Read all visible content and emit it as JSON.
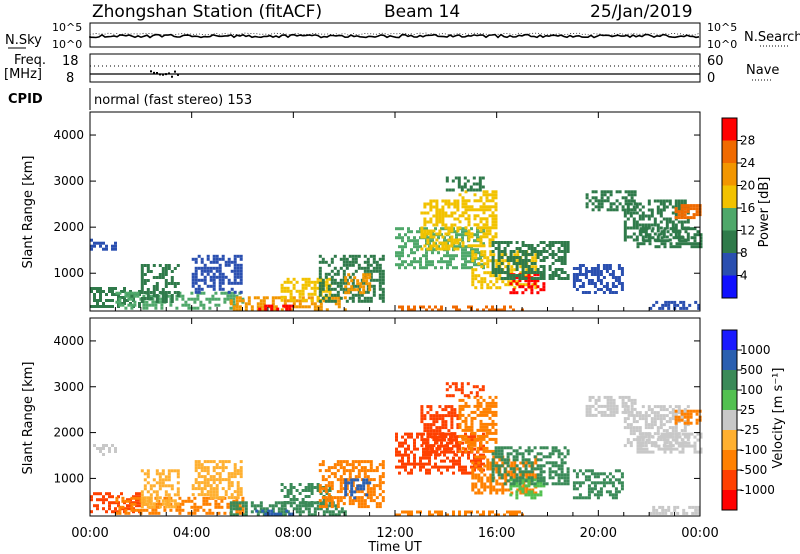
{
  "header": {
    "station": "Zhongshan Station (fitACF)",
    "beam": "Beam 14",
    "date": "25/Jan/2019"
  },
  "aux_panels": {
    "nsky_label": "N.Sky",
    "nsearch_label": "N.Search",
    "nsky_tick_top": "10^5",
    "nsky_tick_bottom": "10^0",
    "freq_label": "Freq.",
    "freq_unit": "[MHz]",
    "freq_tick_top": "18",
    "freq_tick_bottom": "8",
    "nave_label": "Nave",
    "nave_tick_top": "60",
    "nave_tick_bottom": "0",
    "cpid_label": "CPID",
    "cpid_text": "normal (fast stereo) 153"
  },
  "colors": {
    "power_scale": [
      "#1010ff",
      "#2a4fb0",
      "#2f7a4a",
      "#4fa86a",
      "#f2c200",
      "#f29600",
      "#f06a00",
      "#ff0000"
    ],
    "velocity_scale": [
      "#ff0000",
      "#ff4000",
      "#ff8000",
      "#ffb030",
      "#c8c8c8",
      "#52c050",
      "#3a8a58",
      "#2a5fb0",
      "#1a1aff"
    ]
  },
  "chart_data": [
    {
      "type": "heatmap",
      "panel": "power",
      "ylabel": "Slant Range [km]",
      "ylim": [
        180,
        4500
      ],
      "yticks": [
        "1000",
        "2000",
        "3000",
        "4000"
      ],
      "colorbar_label": "Power [dB]",
      "colorbar_ticks": [
        "4",
        "8",
        "12",
        "16",
        "20",
        "24",
        "28"
      ],
      "colorbar_range": [
        0,
        32
      ],
      "regions": [
        {
          "t": [
            0,
            1
          ],
          "r": [
            1500,
            1750
          ],
          "v": 7
        },
        {
          "t": [
            0,
            2
          ],
          "r": [
            250,
            700
          ],
          "v": 9
        },
        {
          "t": [
            1,
            6
          ],
          "r": [
            250,
            600
          ],
          "v": 12
        },
        {
          "t": [
            2,
            3.5
          ],
          "r": [
            400,
            1200
          ],
          "v": 8
        },
        {
          "t": [
            4,
            6
          ],
          "r": [
            600,
            1400
          ],
          "v": 7
        },
        {
          "t": [
            5.5,
            10
          ],
          "r": [
            220,
            500
          ],
          "v": 21
        },
        {
          "t": [
            6.5,
            8
          ],
          "r": [
            220,
            320
          ],
          "v": 28
        },
        {
          "t": [
            7.5,
            9.5
          ],
          "r": [
            400,
            900
          ],
          "v": 17
        },
        {
          "t": [
            9,
            11.5
          ],
          "r": [
            400,
            1400
          ],
          "v": 10
        },
        {
          "t": [
            10,
            11
          ],
          "r": [
            600,
            1000
          ],
          "v": 22
        },
        {
          "t": [
            12,
            17
          ],
          "r": [
            230,
            300
          ],
          "v": 24
        },
        {
          "t": [
            12,
            15.5
          ],
          "r": [
            1100,
            2000
          ],
          "v": 14
        },
        {
          "t": [
            13,
            14.5
          ],
          "r": [
            1500,
            2600
          ],
          "v": 18
        },
        {
          "t": [
            14.5,
            16
          ],
          "r": [
            1600,
            2800
          ],
          "v": 16
        },
        {
          "t": [
            15,
            17.5
          ],
          "r": [
            700,
            1500
          ],
          "v": 19
        },
        {
          "t": [
            16.5,
            17.8
          ],
          "r": [
            600,
            1000
          ],
          "v": 28
        },
        {
          "t": [
            15.8,
            18.8
          ],
          "r": [
            900,
            1700
          ],
          "v": 10
        },
        {
          "t": [
            14,
            15.5
          ],
          "r": [
            2800,
            3100
          ],
          "v": 9
        },
        {
          "t": [
            19,
            21
          ],
          "r": [
            600,
            1200
          ],
          "v": 7
        },
        {
          "t": [
            19.5,
            21.5
          ],
          "r": [
            2400,
            2800
          ],
          "v": 8
        },
        {
          "t": [
            21,
            23.5
          ],
          "r": [
            1700,
            2600
          ],
          "v": 8
        },
        {
          "t": [
            21.5,
            24
          ],
          "r": [
            1600,
            2000
          ],
          "v": 9
        },
        {
          "t": [
            23,
            24
          ],
          "r": [
            2200,
            2500
          ],
          "v": 26
        },
        {
          "t": [
            22,
            24
          ],
          "r": [
            220,
            400
          ],
          "v": 6
        }
      ]
    },
    {
      "type": "heatmap",
      "panel": "velocity",
      "ylabel": "Slant Range [km]",
      "ylim": [
        180,
        4500
      ],
      "yticks": [
        "1000",
        "2000",
        "3000",
        "4000"
      ],
      "xlabel": "Time UT",
      "xticks": [
        "00:00",
        "04:00",
        "08:00",
        "12:00",
        "16:00",
        "20:00",
        "00:00"
      ],
      "xlim": [
        0,
        24
      ],
      "colorbar_label": "Velocity [m s⁻¹]",
      "colorbar_ticks": [
        "1000",
        "500",
        "100",
        "25",
        "-25",
        "-100",
        "-500",
        "-1000"
      ],
      "regions": [
        {
          "t": [
            0,
            1
          ],
          "r": [
            1500,
            1750
          ],
          "v": 4
        },
        {
          "t": [
            0,
            2
          ],
          "r": [
            250,
            700
          ],
          "v": 1
        },
        {
          "t": [
            1,
            6
          ],
          "r": [
            250,
            600
          ],
          "v": 2
        },
        {
          "t": [
            2,
            3.5
          ],
          "r": [
            400,
            1200
          ],
          "v": 3
        },
        {
          "t": [
            4,
            6
          ],
          "r": [
            600,
            1400
          ],
          "v": 3
        },
        {
          "t": [
            5.5,
            10
          ],
          "r": [
            220,
            500
          ],
          "v": 6
        },
        {
          "t": [
            6.5,
            8
          ],
          "r": [
            220,
            320
          ],
          "v": 7
        },
        {
          "t": [
            7.5,
            9.5
          ],
          "r": [
            400,
            900
          ],
          "v": 6
        },
        {
          "t": [
            9,
            11.5
          ],
          "r": [
            400,
            1400
          ],
          "v": 2
        },
        {
          "t": [
            10,
            11
          ],
          "r": [
            600,
            1000
          ],
          "v": 7
        },
        {
          "t": [
            12,
            17
          ],
          "r": [
            230,
            300
          ],
          "v": 2
        },
        {
          "t": [
            12,
            15.5
          ],
          "r": [
            1100,
            2000
          ],
          "v": 1
        },
        {
          "t": [
            13,
            14.5
          ],
          "r": [
            1500,
            2600
          ],
          "v": 1
        },
        {
          "t": [
            14.5,
            16
          ],
          "r": [
            1600,
            2800
          ],
          "v": 2
        },
        {
          "t": [
            15,
            17.5
          ],
          "r": [
            700,
            1500
          ],
          "v": 2
        },
        {
          "t": [
            16.5,
            17.8
          ],
          "r": [
            600,
            1000
          ],
          "v": 5
        },
        {
          "t": [
            15.8,
            18.8
          ],
          "r": [
            900,
            1700
          ],
          "v": 6
        },
        {
          "t": [
            14,
            15.5
          ],
          "r": [
            2800,
            3100
          ],
          "v": 1
        },
        {
          "t": [
            19,
            21
          ],
          "r": [
            600,
            1200
          ],
          "v": 6
        },
        {
          "t": [
            19.5,
            21.5
          ],
          "r": [
            2400,
            2800
          ],
          "v": 4
        },
        {
          "t": [
            21,
            23.5
          ],
          "r": [
            1700,
            2600
          ],
          "v": 4
        },
        {
          "t": [
            21.5,
            24
          ],
          "r": [
            1600,
            2000
          ],
          "v": 4
        },
        {
          "t": [
            23,
            24
          ],
          "r": [
            2200,
            2500
          ],
          "v": 2
        },
        {
          "t": [
            22,
            24
          ],
          "r": [
            220,
            400
          ],
          "v": 4
        }
      ]
    }
  ]
}
